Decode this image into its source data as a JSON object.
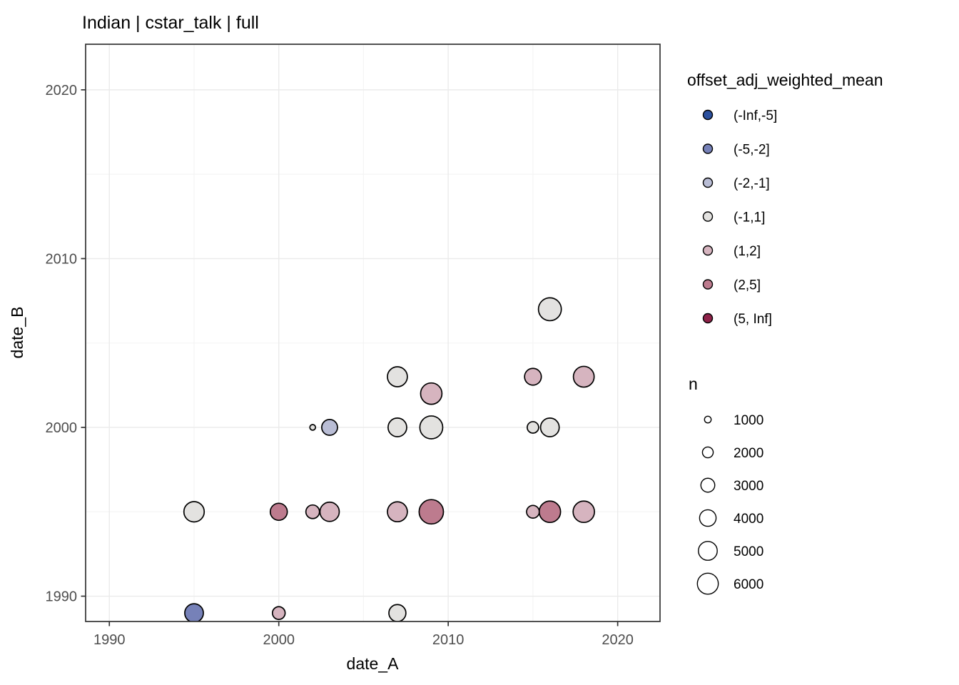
{
  "style": {
    "background": "#ffffff",
    "panel_border": "#333333",
    "grid_major": "#ebebeb",
    "grid_minor": "#f4f4f4",
    "tick_text": "#4d4d4d",
    "title_text": "#000000",
    "point_stroke": "#000000"
  },
  "chart_data": {
    "type": "scatter",
    "title": "Indian | cstar_talk | full",
    "xlabel": "date_A",
    "ylabel": "date_B",
    "x_ticks": [
      1990,
      2000,
      2010,
      2020
    ],
    "x_minor": [
      1995,
      2005,
      2015
    ],
    "y_ticks": [
      1990,
      2000,
      2010,
      2020
    ],
    "y_minor": [
      1995,
      2005,
      2015
    ],
    "xlim": [
      1988.6,
      2022.5
    ],
    "ylim": [
      1988.5,
      2022.7
    ],
    "grid": true,
    "legend_position": "right",
    "color_legend": {
      "title": "offset_adj_weighted_mean",
      "items": [
        {
          "label": "(-Inf,-5]",
          "color": "#2b509e"
        },
        {
          "label": "(-5,-2]",
          "color": "#7681b8"
        },
        {
          "label": "(-2,-1]",
          "color": "#b9bdd5"
        },
        {
          "label": "(-1,1]",
          "color": "#e3e2e0"
        },
        {
          "label": "(1,2]",
          "color": "#d6b4bf"
        },
        {
          "label": "(2,5]",
          "color": "#bd7b8e"
        },
        {
          "label": "(5, Inf]",
          "color": "#8e2249"
        }
      ]
    },
    "size_legend": {
      "title": "n",
      "items": [
        1000,
        2000,
        3000,
        4000,
        5000,
        6000
      ]
    },
    "points": [
      {
        "x": 1995,
        "y": 1995,
        "bin": "(-1,1]",
        "n": 5700
      },
      {
        "x": 1995,
        "y": 1989,
        "bin": "(-5,-2]",
        "n": 4900
      },
      {
        "x": 2000,
        "y": 1995,
        "bin": "(2,5]",
        "n": 4200
      },
      {
        "x": 2000,
        "y": 1989,
        "bin": "(1,2]",
        "n": 2600
      },
      {
        "x": 2002,
        "y": 2000,
        "bin": "(-1,1]",
        "n": 800
      },
      {
        "x": 2002,
        "y": 1995,
        "bin": "(1,2]",
        "n": 2900
      },
      {
        "x": 2003,
        "y": 2000,
        "bin": "(-2,-1]",
        "n": 3700
      },
      {
        "x": 2003,
        "y": 1995,
        "bin": "(1,2]",
        "n": 5200
      },
      {
        "x": 2007,
        "y": 2003,
        "bin": "(-1,1]",
        "n": 5500
      },
      {
        "x": 2007,
        "y": 2000,
        "bin": "(-1,1]",
        "n": 4900
      },
      {
        "x": 2007,
        "y": 1995,
        "bin": "(1,2]",
        "n": 5500
      },
      {
        "x": 2007,
        "y": 1989,
        "bin": "(-1,1]",
        "n": 4200
      },
      {
        "x": 2009,
        "y": 2002,
        "bin": "(1,2]",
        "n": 6200
      },
      {
        "x": 2009,
        "y": 2000,
        "bin": "(-1,1]",
        "n": 7000
      },
      {
        "x": 2009,
        "y": 1995,
        "bin": "(2,5]",
        "n": 7800
      },
      {
        "x": 2015,
        "y": 2003,
        "bin": "(1,2]",
        "n": 4100
      },
      {
        "x": 2015,
        "y": 2000,
        "bin": "(-1,1]",
        "n": 2200
      },
      {
        "x": 2015,
        "y": 1995,
        "bin": "(1,2]",
        "n": 2600
      },
      {
        "x": 2016,
        "y": 2007,
        "bin": "(-1,1]",
        "n": 7000
      },
      {
        "x": 2016,
        "y": 2000,
        "bin": "(-1,1]",
        "n": 4900
      },
      {
        "x": 2016,
        "y": 1995,
        "bin": "(2,5]",
        "n": 6200
      },
      {
        "x": 2018,
        "y": 2003,
        "bin": "(1,2]",
        "n": 5900
      },
      {
        "x": 2018,
        "y": 1995,
        "bin": "(1,2]",
        "n": 6200
      }
    ]
  }
}
